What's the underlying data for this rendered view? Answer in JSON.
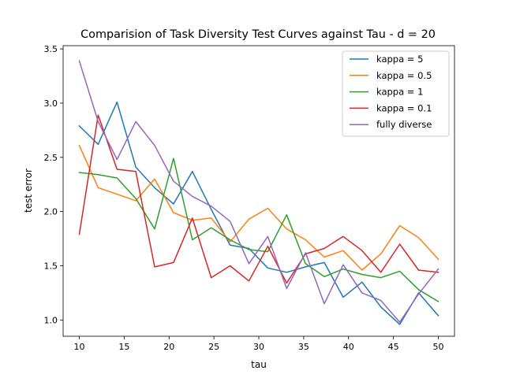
{
  "chart_data": {
    "type": "line",
    "title": "Comparision of Task Diversity Test Curves against Tau - d = 20",
    "xlabel": "tau",
    "ylabel": "test error",
    "xlim": [
      8.2,
      51.8
    ],
    "ylim": [
      0.85,
      3.53
    ],
    "xticks": [
      10,
      15,
      20,
      25,
      30,
      35,
      40,
      45,
      50
    ],
    "yticks": [
      1.0,
      1.5,
      2.0,
      2.5,
      3.0,
      3.5
    ],
    "xtick_labels": [
      "10",
      "15",
      "20",
      "25",
      "30",
      "35",
      "40",
      "45",
      "50"
    ],
    "ytick_labels": [
      "1.0",
      "1.5",
      "2.0",
      "2.5",
      "3.0",
      "3.5"
    ],
    "grid": false,
    "legend_position": "top-right",
    "x": [
      10,
      12.1,
      14.2,
      16.3,
      18.4,
      20.5,
      22.6,
      24.7,
      26.8,
      28.9,
      31.0,
      33.1,
      35.2,
      37.3,
      39.4,
      41.5,
      43.6,
      45.7,
      47.8,
      50
    ],
    "series": [
      {
        "name": "kappa = 5",
        "color": "#1f77b4",
        "values": [
          2.79,
          2.62,
          3.01,
          2.41,
          2.22,
          2.07,
          2.37,
          2.02,
          1.69,
          1.66,
          1.48,
          1.44,
          1.49,
          1.53,
          1.21,
          1.35,
          1.12,
          0.96,
          1.25,
          1.04
        ]
      },
      {
        "name": "kappa = 0.5",
        "color": "#ff7f0e",
        "values": [
          2.61,
          2.22,
          2.16,
          2.1,
          2.3,
          1.99,
          1.92,
          1.94,
          1.72,
          1.93,
          2.03,
          1.84,
          1.74,
          1.58,
          1.64,
          1.46,
          1.61,
          1.87,
          1.76,
          1.56
        ]
      },
      {
        "name": "kappa = 1",
        "color": "#2ca02c",
        "values": [
          2.36,
          2.34,
          2.31,
          2.12,
          1.84,
          2.49,
          1.74,
          1.85,
          1.74,
          1.65,
          1.63,
          1.97,
          1.52,
          1.4,
          1.47,
          1.42,
          1.39,
          1.45,
          1.28,
          1.17
        ]
      },
      {
        "name": "kappa = 0.1",
        "color": "#d62728",
        "values": [
          1.79,
          2.89,
          2.39,
          2.37,
          1.49,
          1.53,
          1.94,
          1.39,
          1.5,
          1.36,
          1.68,
          1.34,
          1.61,
          1.66,
          1.77,
          1.64,
          1.44,
          1.7,
          1.46,
          1.44
        ]
      },
      {
        "name": "fully diverse",
        "color": "#9467bd",
        "values": [
          3.39,
          2.83,
          2.48,
          2.83,
          2.61,
          2.28,
          2.14,
          2.05,
          1.91,
          1.52,
          1.77,
          1.29,
          1.62,
          1.15,
          1.51,
          1.25,
          1.18,
          0.98,
          1.24,
          1.47
        ]
      }
    ]
  }
}
